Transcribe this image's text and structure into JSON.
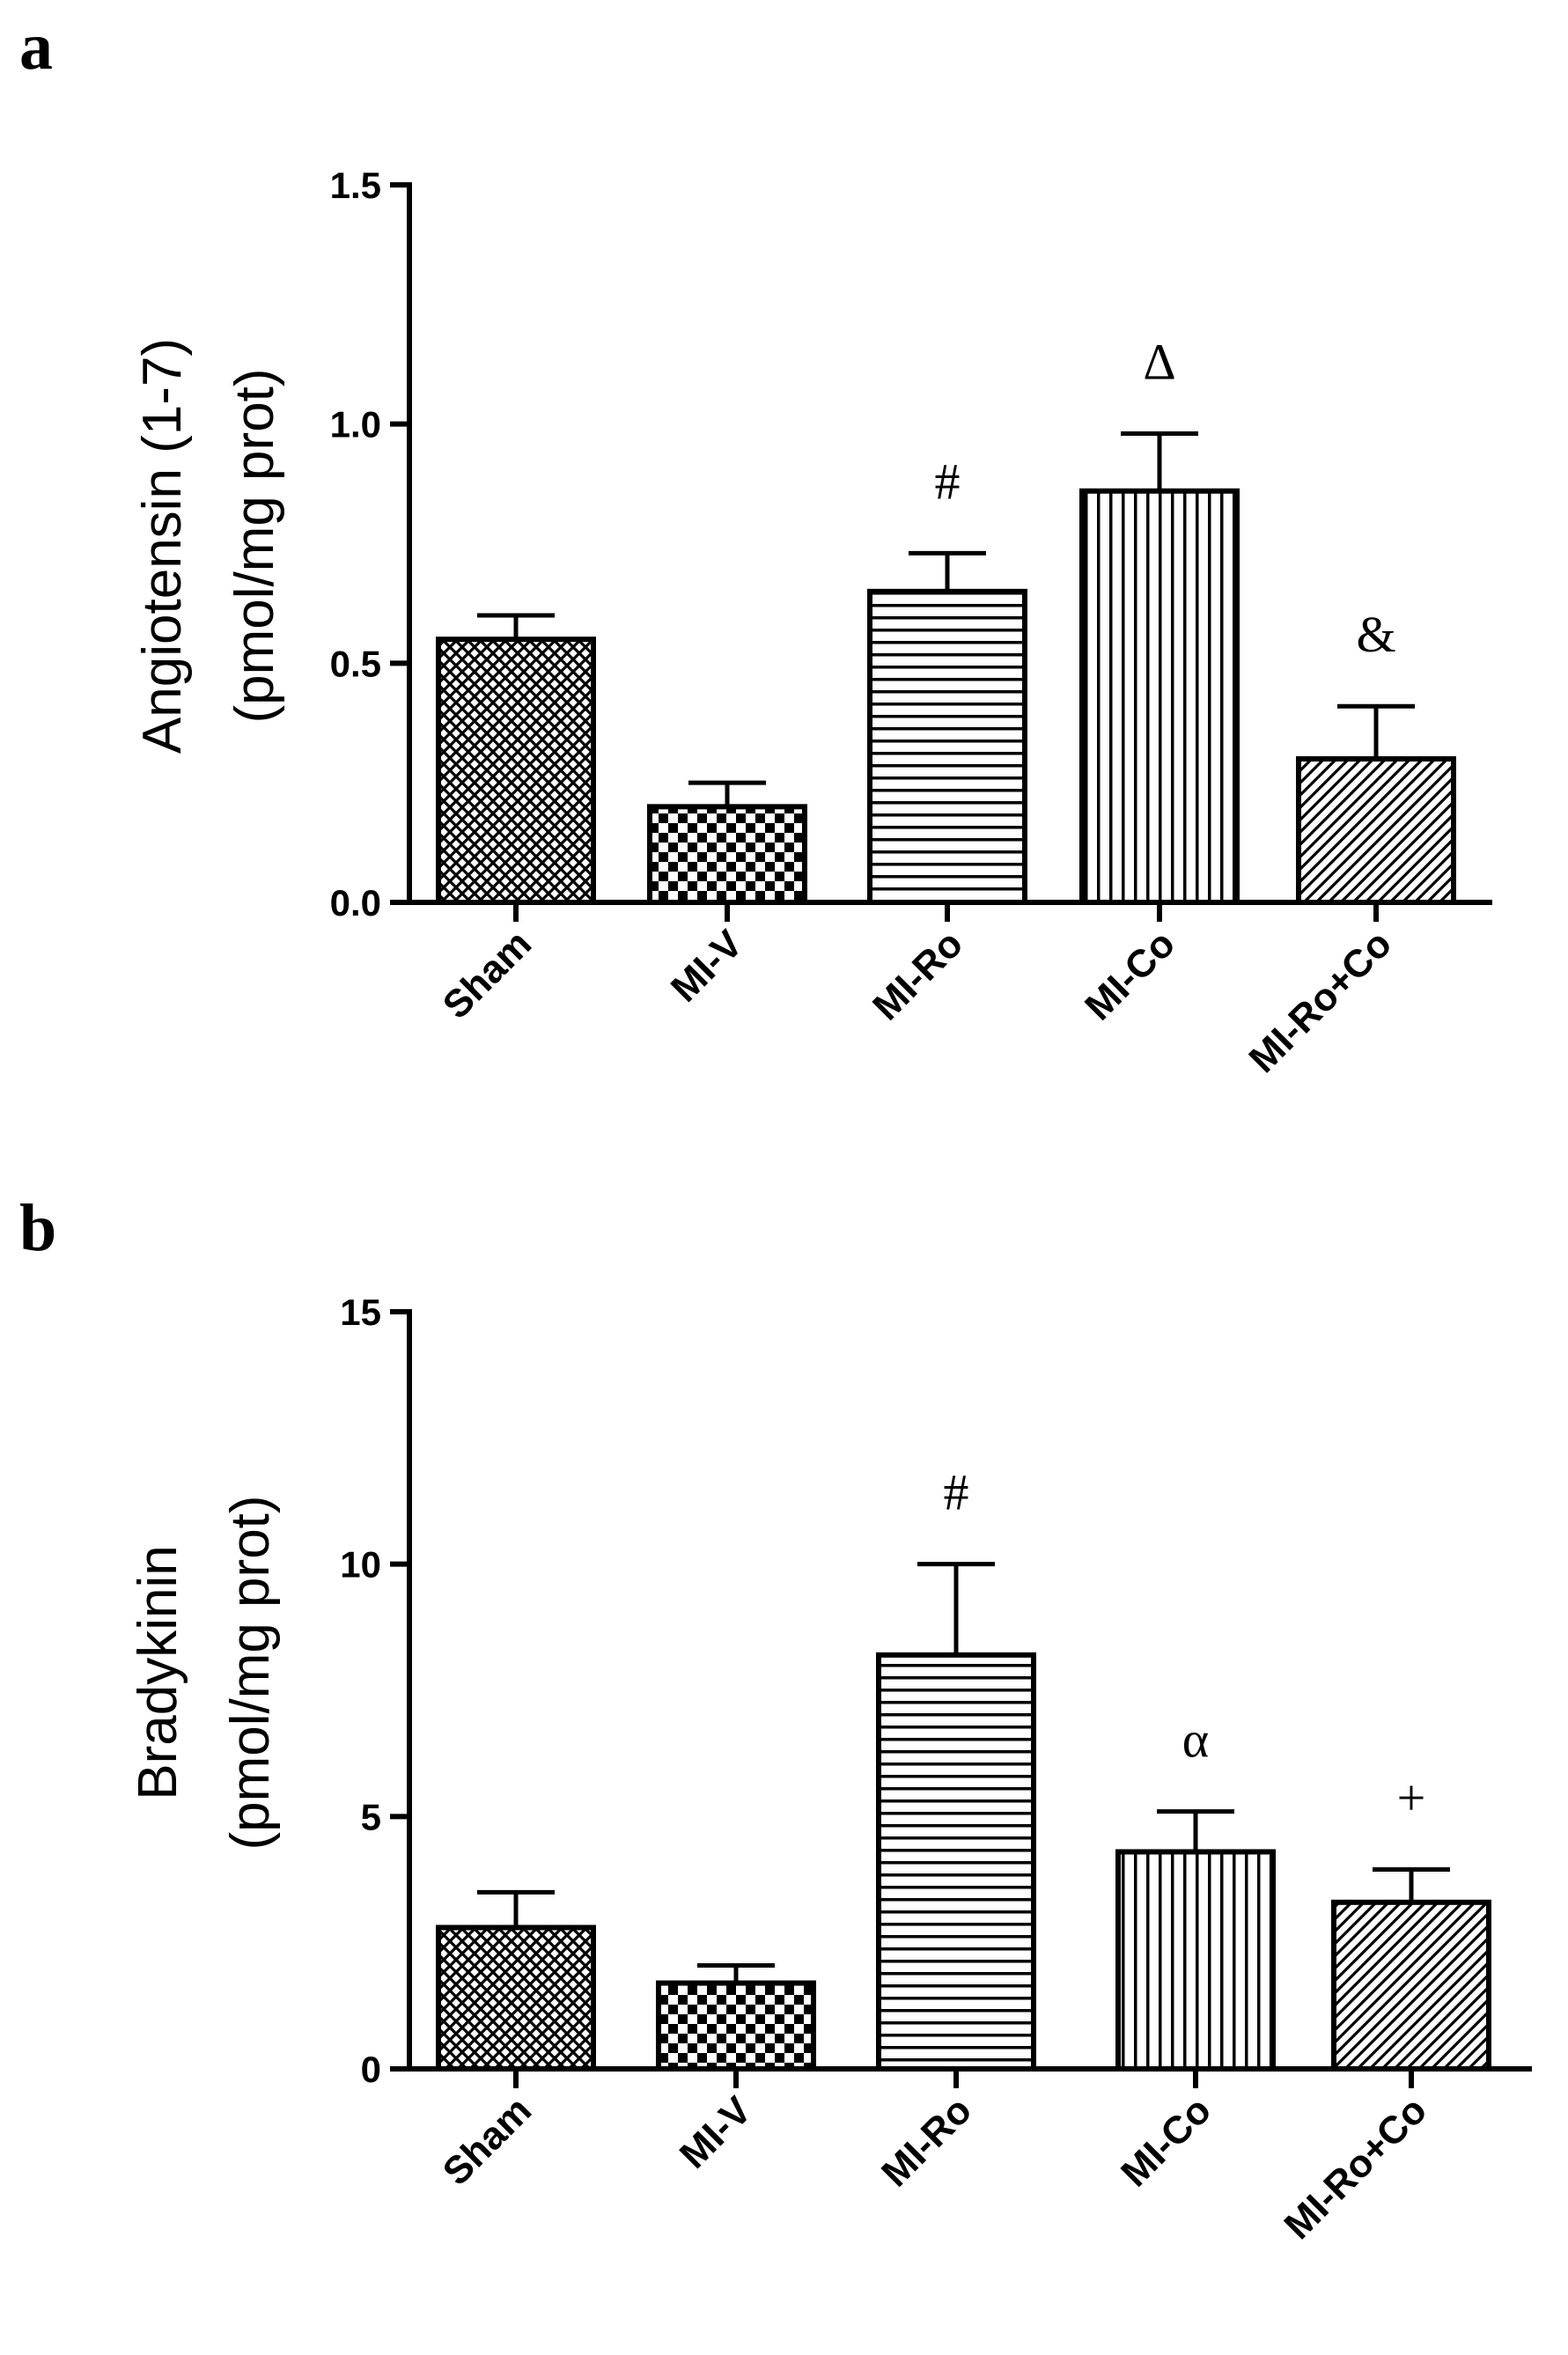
{
  "chart_data": [
    {
      "panel": "a",
      "type": "bar",
      "ylabel_lines": [
        "Angiotensin (1-7)",
        "(pmol/mg prot)"
      ],
      "ylim": [
        0,
        1.5
      ],
      "yticks": [
        0.0,
        0.5,
        1.0,
        1.5
      ],
      "ytick_labels": [
        "0.0",
        "0.5",
        "1.0",
        "1.5"
      ],
      "categories": [
        "Sham",
        "MI-V",
        "MI-Ro",
        "MI-Co",
        "MI-Ro+Co"
      ],
      "values": [
        0.55,
        0.2,
        0.65,
        0.86,
        0.3
      ],
      "errors": [
        0.05,
        0.05,
        0.08,
        0.12,
        0.11
      ],
      "annotations": [
        "",
        "",
        "#",
        "Δ",
        "&"
      ],
      "patterns": [
        "crosshatch",
        "checker",
        "hlines",
        "vlines",
        "diagonal"
      ]
    },
    {
      "panel": "b",
      "type": "bar",
      "ylabel_lines": [
        "Bradykinin",
        "(pmol/mg prot)"
      ],
      "ylim": [
        0,
        15
      ],
      "yticks": [
        0,
        5,
        10,
        15
      ],
      "ytick_labels": [
        "0",
        "5",
        "10",
        "15"
      ],
      "categories": [
        "Sham",
        "MI-V",
        "MI-Ro",
        "MI-Co",
        "MI-Ro+Co"
      ],
      "values": [
        2.8,
        1.7,
        8.2,
        4.3,
        3.3
      ],
      "errors": [
        0.7,
        0.35,
        1.8,
        0.8,
        0.65
      ],
      "annotations": [
        "",
        "",
        "#",
        "α",
        "+"
      ],
      "patterns": [
        "crosshatch",
        "checker",
        "hlines",
        "vlines",
        "diagonal"
      ]
    }
  ]
}
